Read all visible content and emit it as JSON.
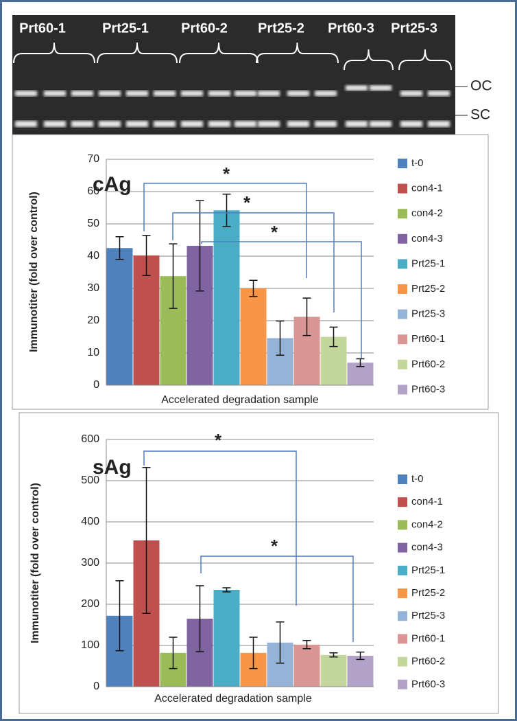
{
  "gel": {
    "lanes": [
      "Prt60-1",
      "Prt25-1",
      "Prt60-2",
      "Prt25-2",
      "Prt60-3",
      "Prt25-3"
    ],
    "bands": [
      "OC",
      "SC"
    ]
  },
  "chart_data": [
    {
      "type": "bar",
      "title": "cAg",
      "y_label": "Immunotiter (fold over control)",
      "x_label": "Accelerated degradation sample",
      "categories": [
        "t-0",
        "con4-1",
        "con4-2",
        "con4-3",
        "Prt25-1",
        "Prt25-2",
        "Prt25-3",
        "Prt60-1",
        "Prt60-2",
        "Prt60-3"
      ],
      "values": [
        42.5,
        40.2,
        33.8,
        43.2,
        54.2,
        30,
        14.6,
        21.2,
        15,
        7
      ],
      "errors": [
        3.5,
        6.2,
        10,
        14,
        5,
        2.5,
        5.3,
        5.8,
        3,
        1.2
      ],
      "colors": [
        "#4f81bd",
        "#c0504d",
        "#9bbb59",
        "#8064a2",
        "#4bacc6",
        "#f79646",
        "#95b3d7",
        "#d99694",
        "#c3d69b",
        "#b3a2c7"
      ],
      "annotations": [
        "*",
        "*",
        "*"
      ],
      "ylim": [
        0,
        70
      ],
      "yticks": [
        0,
        10,
        20,
        30,
        40,
        50,
        60,
        70
      ],
      "grid": true,
      "legend": "right"
    },
    {
      "type": "bar",
      "title": "sAg",
      "y_label": "Immunotiter (fold over control)",
      "x_label": "Accelerated degradation sample",
      "categories": [
        "t-0",
        "con4-1",
        "con4-2",
        "con4-3",
        "Prt25-1",
        "Prt25-2",
        "Prt25-3",
        "Prt60-1",
        "Prt60-2",
        "Prt60-3"
      ],
      "values": [
        172,
        355,
        82,
        165,
        235,
        82,
        107,
        102,
        77,
        75
      ],
      "errors": [
        85,
        177,
        38,
        80,
        5,
        38,
        50,
        10,
        5,
        9
      ],
      "colors": [
        "#4f81bd",
        "#c0504d",
        "#9bbb59",
        "#8064a2",
        "#4bacc6",
        "#f79646",
        "#95b3d7",
        "#d99694",
        "#c3d69b",
        "#b3a2c7"
      ],
      "annotations": [
        "*",
        "*"
      ],
      "ylim": [
        0,
        600
      ],
      "yticks": [
        0,
        100,
        200,
        300,
        400,
        500,
        600
      ],
      "grid": true,
      "legend": "right"
    }
  ]
}
